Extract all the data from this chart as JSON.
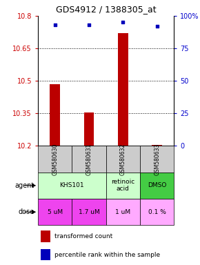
{
  "title": "GDS4912 / 1388305_at",
  "samples": [
    "GSM580630",
    "GSM580631",
    "GSM580632",
    "GSM580633"
  ],
  "bar_values": [
    10.485,
    10.355,
    10.72,
    10.205
  ],
  "bar_bottom": 10.2,
  "blue_values": [
    93,
    93,
    95,
    92
  ],
  "ylim_left": [
    10.2,
    10.8
  ],
  "ylim_right": [
    0,
    100
  ],
  "yticks_left": [
    10.2,
    10.35,
    10.5,
    10.65,
    10.8
  ],
  "yticks_left_labels": [
    "10.2",
    "10.35",
    "10.5",
    "10.65",
    "10.8"
  ],
  "yticks_right": [
    0,
    25,
    50,
    75,
    100
  ],
  "yticks_right_labels": [
    "0",
    "25",
    "50",
    "75",
    "100%"
  ],
  "dotted_lines": [
    10.35,
    10.5,
    10.65
  ],
  "bar_color": "#bb0000",
  "blue_color": "#0000bb",
  "agent_light_green": "#ccffcc",
  "agent_dark_green": "#44cc44",
  "dose_bright": "#ee44ee",
  "dose_light": "#ffaaff",
  "sample_bg": "#cccccc",
  "left_label_color": "#cc0000",
  "right_label_color": "#0000cc",
  "dose_colors": [
    "#ee44ee",
    "#ee44ee",
    "#ffaaff",
    "#ffaaff"
  ]
}
